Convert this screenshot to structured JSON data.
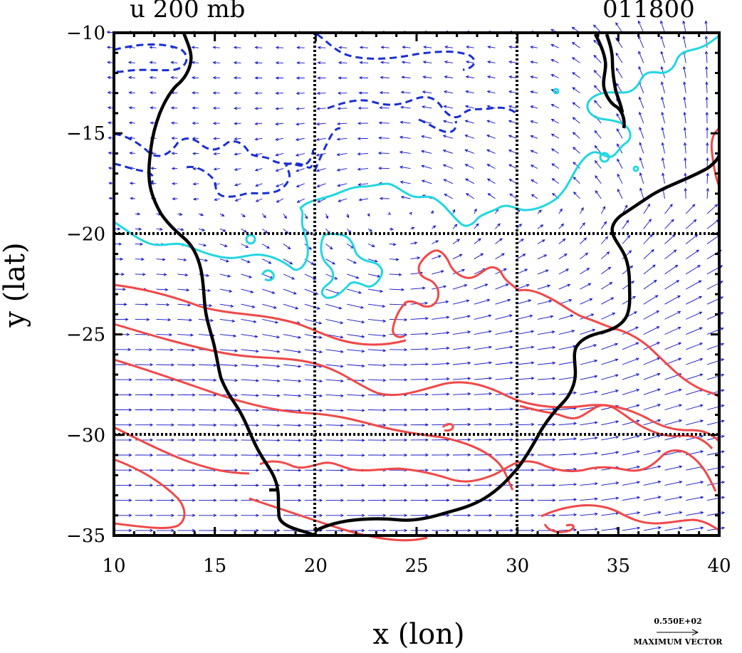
{
  "header": {
    "left_title": "u 200 mb",
    "right_title": "011800"
  },
  "axes": {
    "x_label": "x (lon)",
    "y_label": "y (lat)",
    "x_ticks": [
      "10",
      "15",
      "20",
      "25",
      "30",
      "35",
      "40"
    ],
    "y_ticks": [
      "−10",
      "−15",
      "−20",
      "−25",
      "−30",
      "−35"
    ],
    "x_range": [
      10,
      40
    ],
    "y_range": [
      -35,
      -10
    ],
    "grid_lines_x": [
      20,
      30
    ],
    "grid_lines_y": [
      -20,
      -30
    ]
  },
  "legend": {
    "max_vector_value": "0.550E+02",
    "max_vector_label": "MAXIMUM VECTOR"
  },
  "colors": {
    "coastline": "#000000",
    "vectors": "#1010c8",
    "dashed_contour": "#1a2fd0",
    "cyan_contour": "#22d6e0",
    "red_contour": "#f04848"
  },
  "map_data": {
    "field": "u wind at 200 mb",
    "contour_sets": [
      {
        "name": "negative",
        "style": "dashed",
        "color_key": "dashed_contour"
      },
      {
        "name": "zero",
        "style": "solid",
        "color_key": "cyan_contour"
      },
      {
        "name": "positive",
        "style": "solid",
        "color_key": "red_contour"
      }
    ]
  }
}
